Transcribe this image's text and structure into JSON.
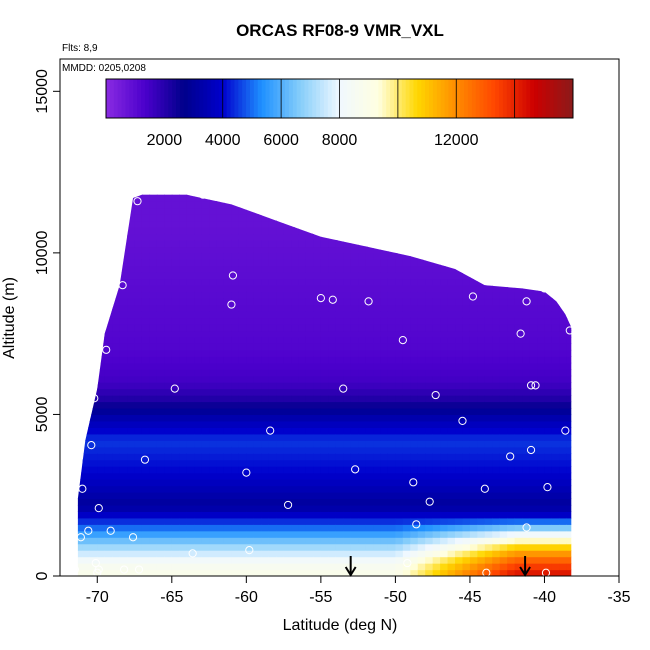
{
  "chart_data": {
    "type": "heatmap",
    "title": "ORCAS RF08-9 VMR_VXL",
    "notes": [
      "Flts: 8,9",
      "MMDD: 0205,0208"
    ],
    "xlabel": "Latitude (deg N)",
    "ylabel": "Altitude (m)",
    "xlim": [
      -72.5,
      -35
    ],
    "ylim": [
      0,
      16000
    ],
    "xticks": [
      -70,
      -65,
      -60,
      -55,
      -50,
      -45,
      -40,
      -35
    ],
    "yticks": [
      0,
      5000,
      10000,
      15000
    ],
    "xtick_labels": [
      "-70",
      "-65",
      "-60",
      "-55",
      "-50",
      "-45",
      "-40",
      "-35"
    ],
    "ytick_labels": [
      "0",
      "5000",
      "10000",
      "15000"
    ],
    "colorbar": {
      "label_values": [
        2000,
        4000,
        6000,
        8000,
        12000
      ],
      "labels": [
        "2000",
        "4000",
        "6000",
        "8000",
        "12000"
      ],
      "range": [
        0,
        16000
      ],
      "line_values": [
        4000,
        6000,
        8000,
        10000,
        12000,
        14000
      ],
      "colors": [
        "#8a2be2",
        "#4b00cc",
        "#00008b",
        "#0000cd",
        "#1e90ff",
        "#87cefa",
        "#f0f8ff",
        "#ffffe0",
        "#ffd700",
        "#ff8c00",
        "#ff4500",
        "#cc0000",
        "#8b1a1a"
      ]
    },
    "envelope": {
      "lat": [
        -71.3,
        -70.8,
        -70.0,
        -69.5,
        -68.5,
        -67.6,
        -67.0,
        -64.0,
        -61.0,
        -58.0,
        -55.0,
        -52.0,
        -49.0,
        -46.0,
        -44.0,
        -41.5,
        -40.0,
        -39.2,
        -38.6,
        -38.2
      ],
      "top_altitude": [
        2400,
        4200,
        5800,
        7500,
        9000,
        11700,
        11800,
        11800,
        11500,
        11000,
        10500,
        10200,
        9900,
        9500,
        9000,
        8900,
        8800,
        8500,
        8100,
        7700
      ]
    },
    "field_bands": [
      {
        "altitude": 11000,
        "value": 800
      },
      {
        "altitude": 9000,
        "value": 1000
      },
      {
        "altitude": 7000,
        "value": 1200
      },
      {
        "altitude": 6000,
        "value": 1500
      },
      {
        "altitude": 5400,
        "value": 2200
      },
      {
        "altitude": 5000,
        "value": 3200
      },
      {
        "altitude": 4200,
        "value": 4500
      },
      {
        "altitude": 3200,
        "value": 4000
      },
      {
        "altitude": 2200,
        "value": 3000
      },
      {
        "altitude": 1500,
        "value": 5000
      },
      {
        "altitude": 900,
        "value": 7000
      },
      {
        "altitude": 400,
        "value": 8500
      },
      {
        "altitude": 0,
        "value": 9000
      }
    ],
    "warm_region": {
      "lat_start": -50,
      "lat_end": -39.5,
      "max_value": 14500,
      "max_altitude": 1800
    },
    "sample_points": [
      [
        -67.3,
        11600
      ],
      [
        -62.9,
        11800
      ],
      [
        -68.3,
        9000
      ],
      [
        -60.9,
        9300
      ],
      [
        -61.0,
        8400
      ],
      [
        -55.0,
        8600
      ],
      [
        -54.2,
        8550
      ],
      [
        -51.8,
        8500
      ],
      [
        -44.8,
        8650
      ],
      [
        -40.0,
        8900
      ],
      [
        -41.2,
        8500
      ],
      [
        -41.6,
        7500
      ],
      [
        -39.2,
        8900
      ],
      [
        -38.3,
        7600
      ],
      [
        -49.5,
        7300
      ],
      [
        -69.4,
        7000
      ],
      [
        -64.8,
        5800
      ],
      [
        -53.5,
        5800
      ],
      [
        -47.3,
        5600
      ],
      [
        -40.9,
        5900
      ],
      [
        -40.6,
        5900
      ],
      [
        -70.2,
        5500
      ],
      [
        -58.4,
        4500
      ],
      [
        -70.4,
        4050
      ],
      [
        -66.8,
        3600
      ],
      [
        -60.0,
        3200
      ],
      [
        -52.7,
        3300
      ],
      [
        -48.8,
        2900
      ],
      [
        -44.0,
        2700
      ],
      [
        -42.3,
        3700
      ],
      [
        -40.9,
        3900
      ],
      [
        -39.8,
        2750
      ],
      [
        -38.6,
        4500
      ],
      [
        -71.0,
        2700
      ],
      [
        -69.9,
        2100
      ],
      [
        -57.2,
        2200
      ],
      [
        -47.7,
        2300
      ],
      [
        -45.5,
        4800
      ],
      [
        -69.1,
        1400
      ],
      [
        -67.6,
        1200
      ],
      [
        -70.6,
        1400
      ],
      [
        -71.1,
        1200
      ],
      [
        -48.6,
        1600
      ],
      [
        -41.2,
        1500
      ],
      [
        -63.6,
        700
      ],
      [
        -59.8,
        800
      ],
      [
        -70.1,
        400
      ],
      [
        -69.9,
        200
      ],
      [
        -71.5,
        200
      ],
      [
        -68.2,
        200
      ],
      [
        -67.2,
        200
      ],
      [
        -49.2,
        400
      ],
      [
        -43.9,
        100
      ],
      [
        -39.9,
        100
      ],
      [
        -70.0,
        100
      ]
    ],
    "arrows": [
      {
        "lat": -53.0,
        "altitude": 0
      },
      {
        "lat": -41.3,
        "altitude": 0
      }
    ],
    "grid": false,
    "legend": "top"
  }
}
